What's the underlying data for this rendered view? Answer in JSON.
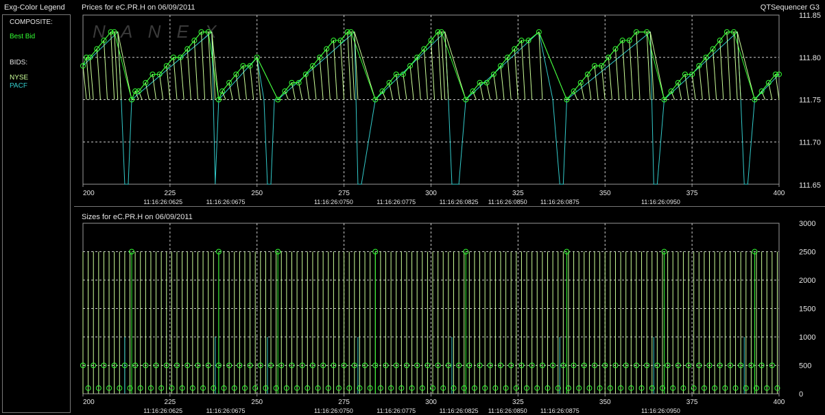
{
  "legend": {
    "title": "Exg-Color Legend",
    "composite_header": "COMPOSITE:",
    "best_bid": "Best Bid",
    "bids_header": "BIDS:",
    "nyse": "NYSE",
    "pacf": "PACF"
  },
  "top_panel": {
    "title": "Prices for  eC.PR.H  on  06/09/2011",
    "app_name": "QTSequencer G3",
    "watermark": "N A N E X"
  },
  "bottom_panel": {
    "title": "Sizes for  eC.PR.H  on  06/09/2011"
  },
  "colors": {
    "best_bid": "#33ff33",
    "nyse": "#ccff99",
    "pacf": "#33cccc",
    "grid": "#cfcfcf",
    "background": "#000000"
  },
  "chart_data": [
    {
      "type": "line",
      "title": "Prices for  eC.PR.H  on  06/09/2011",
      "x_ticks": [
        200,
        225,
        250,
        275,
        300,
        325,
        350,
        375,
        400
      ],
      "time_labels": [
        "11:16:26:0625",
        "11:16:26:0675",
        "11:16:26:0750",
        "11:16:26:0775",
        "11:16:26:0825",
        "11:16:26:0850",
        "11:16:26:0875",
        "11:16:26:0950"
      ],
      "time_label_positions": [
        223,
        241,
        272,
        290,
        308,
        322,
        337,
        366
      ],
      "y_ticks": [
        "111.85",
        "111.80",
        "111.75",
        "111.70",
        "111.65"
      ],
      "ylim": [
        111.65,
        111.85
      ],
      "xlim": [
        200,
        400
      ],
      "grid": true,
      "series": [
        {
          "name": "Best Bid",
          "points": [
            [
              200,
              111.79
            ],
            [
              201,
              111.8
            ],
            [
              202,
              111.8
            ],
            [
              204,
              111.81
            ],
            [
              206,
              111.82
            ],
            [
              208,
              111.83
            ],
            [
              209,
              111.83
            ],
            [
              214,
              111.75
            ],
            [
              215,
              111.76
            ],
            [
              216,
              111.76
            ],
            [
              218,
              111.77
            ],
            [
              220,
              111.78
            ],
            [
              222,
              111.78
            ],
            [
              224,
              111.79
            ],
            [
              226,
              111.8
            ],
            [
              228,
              111.8
            ],
            [
              230,
              111.81
            ],
            [
              232,
              111.82
            ],
            [
              234,
              111.83
            ],
            [
              236,
              111.83
            ],
            [
              239,
              111.75
            ],
            [
              240,
              111.76
            ],
            [
              242,
              111.77
            ],
            [
              244,
              111.78
            ],
            [
              246,
              111.79
            ],
            [
              248,
              111.79
            ],
            [
              250,
              111.8
            ],
            [
              256,
              111.75
            ],
            [
              258,
              111.76
            ],
            [
              260,
              111.77
            ],
            [
              262,
              111.77
            ],
            [
              264,
              111.78
            ],
            [
              266,
              111.79
            ],
            [
              268,
              111.8
            ],
            [
              270,
              111.81
            ],
            [
              272,
              111.82
            ],
            [
              274,
              111.82
            ],
            [
              276,
              111.83
            ],
            [
              277,
              111.83
            ],
            [
              284,
              111.75
            ],
            [
              286,
              111.76
            ],
            [
              288,
              111.77
            ],
            [
              290,
              111.78
            ],
            [
              292,
              111.78
            ],
            [
              294,
              111.79
            ],
            [
              296,
              111.8
            ],
            [
              298,
              111.81
            ],
            [
              300,
              111.82
            ],
            [
              302,
              111.83
            ],
            [
              303,
              111.83
            ],
            [
              310,
              111.75
            ],
            [
              312,
              111.76
            ],
            [
              314,
              111.77
            ],
            [
              316,
              111.77
            ],
            [
              318,
              111.78
            ],
            [
              320,
              111.79
            ],
            [
              322,
              111.8
            ],
            [
              324,
              111.81
            ],
            [
              326,
              111.82
            ],
            [
              328,
              111.82
            ],
            [
              331,
              111.83
            ],
            [
              339,
              111.75
            ],
            [
              341,
              111.76
            ],
            [
              343,
              111.77
            ],
            [
              345,
              111.78
            ],
            [
              347,
              111.79
            ],
            [
              349,
              111.79
            ],
            [
              351,
              111.8
            ],
            [
              353,
              111.81
            ],
            [
              355,
              111.82
            ],
            [
              357,
              111.82
            ],
            [
              359,
              111.83
            ],
            [
              362,
              111.83
            ],
            [
              367,
              111.75
            ],
            [
              369,
              111.76
            ],
            [
              371,
              111.77
            ],
            [
              373,
              111.78
            ],
            [
              375,
              111.78
            ],
            [
              377,
              111.79
            ],
            [
              379,
              111.8
            ],
            [
              381,
              111.81
            ],
            [
              383,
              111.82
            ],
            [
              385,
              111.83
            ],
            [
              387,
              111.83
            ],
            [
              393,
              111.75
            ],
            [
              395,
              111.76
            ],
            [
              397,
              111.77
            ],
            [
              399,
              111.78
            ],
            [
              400,
              111.78
            ]
          ]
        },
        {
          "name": "NYSE",
          "points": [
            [
              200,
              111.79
            ],
            [
              201,
              111.8
            ],
            [
              202,
              111.8
            ],
            [
              204,
              111.81
            ],
            [
              206,
              111.82
            ],
            [
              208,
              111.83
            ],
            [
              209,
              111.83
            ],
            [
              210,
              111.83
            ],
            [
              214,
              111.75
            ],
            [
              215,
              111.76
            ],
            [
              216,
              111.76
            ],
            [
              218,
              111.77
            ],
            [
              220,
              111.78
            ],
            [
              222,
              111.78
            ],
            [
              224,
              111.79
            ],
            [
              226,
              111.8
            ],
            [
              228,
              111.8
            ],
            [
              230,
              111.81
            ],
            [
              232,
              111.82
            ],
            [
              234,
              111.83
            ],
            [
              236,
              111.83
            ],
            [
              237,
              111.83
            ],
            [
              239,
              111.75
            ],
            [
              240,
              111.76
            ],
            [
              242,
              111.77
            ],
            [
              244,
              111.78
            ],
            [
              246,
              111.79
            ],
            [
              248,
              111.79
            ],
            [
              250,
              111.8
            ],
            [
              256,
              111.75
            ],
            [
              258,
              111.76
            ],
            [
              260,
              111.77
            ],
            [
              262,
              111.77
            ],
            [
              264,
              111.78
            ],
            [
              266,
              111.79
            ],
            [
              268,
              111.8
            ],
            [
              270,
              111.81
            ],
            [
              272,
              111.82
            ],
            [
              274,
              111.82
            ],
            [
              276,
              111.83
            ],
            [
              277,
              111.83
            ],
            [
              278,
              111.83
            ],
            [
              284,
              111.75
            ],
            [
              286,
              111.76
            ],
            [
              288,
              111.77
            ],
            [
              290,
              111.78
            ],
            [
              292,
              111.78
            ],
            [
              294,
              111.79
            ],
            [
              296,
              111.8
            ],
            [
              298,
              111.81
            ],
            [
              300,
              111.82
            ],
            [
              302,
              111.83
            ],
            [
              303,
              111.83
            ],
            [
              304,
              111.83
            ],
            [
              310,
              111.75
            ],
            [
              312,
              111.76
            ],
            [
              314,
              111.77
            ],
            [
              316,
              111.77
            ],
            [
              318,
              111.78
            ],
            [
              320,
              111.79
            ],
            [
              322,
              111.8
            ],
            [
              324,
              111.81
            ],
            [
              326,
              111.82
            ],
            [
              328,
              111.82
            ],
            [
              331,
              111.83
            ],
            [
              339,
              111.75
            ],
            [
              341,
              111.76
            ],
            [
              343,
              111.77
            ],
            [
              345,
              111.78
            ],
            [
              347,
              111.79
            ],
            [
              349,
              111.79
            ],
            [
              351,
              111.8
            ],
            [
              353,
              111.81
            ],
            [
              355,
              111.82
            ],
            [
              357,
              111.82
            ],
            [
              359,
              111.83
            ],
            [
              362,
              111.83
            ],
            [
              363,
              111.83
            ],
            [
              367,
              111.75
            ],
            [
              369,
              111.76
            ],
            [
              371,
              111.77
            ],
            [
              373,
              111.78
            ],
            [
              375,
              111.78
            ],
            [
              377,
              111.79
            ],
            [
              379,
              111.8
            ],
            [
              381,
              111.81
            ],
            [
              383,
              111.82
            ],
            [
              385,
              111.83
            ],
            [
              387,
              111.83
            ],
            [
              388,
              111.83
            ],
            [
              393,
              111.75
            ],
            [
              395,
              111.76
            ],
            [
              397,
              111.77
            ],
            [
              399,
              111.78
            ],
            [
              400,
              111.78
            ]
          ]
        },
        {
          "name": "PACF",
          "points": [
            [
              200,
              111.79
            ],
            [
              210,
              111.83
            ],
            [
              211,
              111.75
            ],
            [
              212,
              111.65
            ],
            [
              213,
              111.65
            ],
            [
              214,
              111.75
            ],
            [
              237,
              111.83
            ],
            [
              238,
              111.65
            ],
            [
              239,
              111.75
            ],
            [
              250,
              111.8
            ],
            [
              252,
              111.75
            ],
            [
              253,
              111.65
            ],
            [
              254,
              111.65
            ],
            [
              255,
              111.75
            ],
            [
              256,
              111.75
            ],
            [
              278,
              111.83
            ],
            [
              279,
              111.65
            ],
            [
              280,
              111.65
            ],
            [
              284,
              111.75
            ],
            [
              304,
              111.83
            ],
            [
              305,
              111.75
            ],
            [
              306,
              111.65
            ],
            [
              308,
              111.65
            ],
            [
              310,
              111.75
            ],
            [
              331,
              111.83
            ],
            [
              335,
              111.75
            ],
            [
              337,
              111.65
            ],
            [
              338,
              111.65
            ],
            [
              339,
              111.75
            ],
            [
              363,
              111.83
            ],
            [
              364,
              111.65
            ],
            [
              365,
              111.65
            ],
            [
              367,
              111.75
            ],
            [
              388,
              111.83
            ],
            [
              389,
              111.75
            ],
            [
              390,
              111.65
            ],
            [
              391,
              111.65
            ],
            [
              393,
              111.75
            ],
            [
              400,
              111.78
            ]
          ]
        }
      ]
    },
    {
      "type": "bar",
      "title": "Sizes for  eC.PR.H  on  06/09/2011",
      "x_ticks": [
        200,
        225,
        250,
        275,
        300,
        325,
        350,
        375,
        400
      ],
      "time_labels": [
        "11:16:26:0625",
        "11:16:26:0675",
        "11:16:26:0750",
        "11:16:26:0775",
        "11:16:26:0825",
        "11:16:26:0850",
        "11:16:26:0875",
        "11:16:26:0950"
      ],
      "time_label_positions": [
        223,
        241,
        272,
        290,
        308,
        322,
        337,
        366
      ],
      "y_ticks": [
        "3000",
        "2500",
        "2000",
        "1500",
        "1000",
        "500",
        "0"
      ],
      "ylim": [
        0,
        3000
      ],
      "xlim": [
        200,
        400
      ],
      "grid": true,
      "series": [
        {
          "name": "Best Bid",
          "points": [
            [
              214,
              2500
            ],
            [
              239,
              2500
            ],
            [
              256,
              2500
            ],
            [
              284,
              2500
            ],
            [
              310,
              2500
            ],
            [
              339,
              2500
            ],
            [
              367,
              2500
            ],
            [
              393,
              2500
            ]
          ],
          "baseline_points": [
            [
              200,
              500
            ],
            [
              400,
              500
            ]
          ]
        },
        {
          "name": "NYSE",
          "points": [
            [
              200,
              2500
            ],
            [
              400,
              2500
            ]
          ]
        },
        {
          "name": "PACF",
          "points": [
            [
              212,
              1000
            ],
            [
              238,
              1000
            ],
            [
              253,
              1000
            ],
            [
              279,
              1000
            ],
            [
              306,
              1000
            ],
            [
              337,
              1000
            ],
            [
              364,
              1000
            ],
            [
              390,
              1000
            ]
          ]
        }
      ]
    }
  ]
}
